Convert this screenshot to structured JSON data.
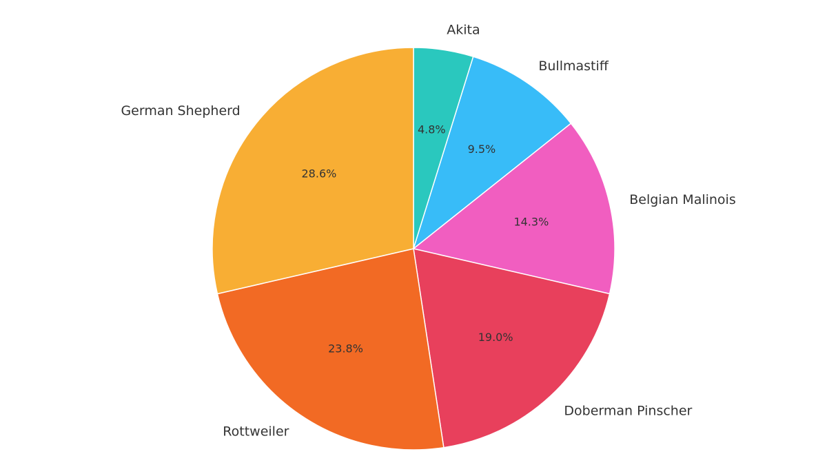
{
  "chart_data": {
    "type": "pie",
    "start_angle": "top",
    "direction": "clockwise",
    "slices": [
      {
        "label": "Akita",
        "value": 4.8,
        "value_label": "4.8%",
        "color": "#2ac8be"
      },
      {
        "label": "Bullmastiff",
        "value": 9.5,
        "value_label": "9.5%",
        "color": "#38bcf8"
      },
      {
        "label": "Belgian Malinois",
        "value": 14.3,
        "value_label": "14.3%",
        "color": "#f15ec0"
      },
      {
        "label": "Doberman Pinscher",
        "value": 19.0,
        "value_label": "19.0%",
        "color": "#e8405c"
      },
      {
        "label": "Rottweiler",
        "value": 23.8,
        "value_label": "23.8%",
        "color": "#f26a24"
      },
      {
        "label": "German Shepherd",
        "value": 28.6,
        "value_label": "28.6%",
        "color": "#f8ae34"
      }
    ]
  }
}
